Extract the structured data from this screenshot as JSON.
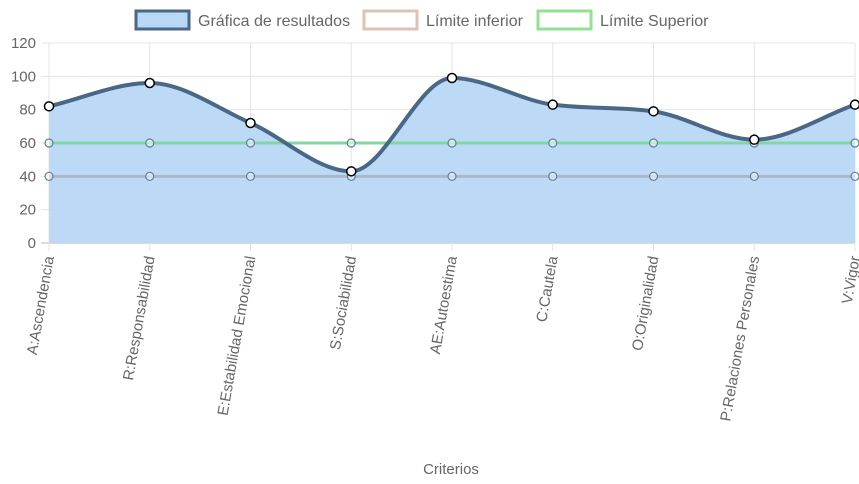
{
  "chart_data": {
    "type": "line",
    "categories": [
      "A:Ascendencia",
      "R:Responsabilidad",
      "E:Estabilidad Emocional",
      "S:Sociabilidad",
      "AE:Autoestima",
      "C:Cautela",
      "O:Originalidad",
      "P:Relaciones Personales",
      "V:Vigor"
    ],
    "series": [
      {
        "name": "Gráfica de resultados",
        "values": [
          82,
          96,
          72,
          43,
          99,
          83,
          79,
          62,
          83
        ],
        "border_color": "#4a6787",
        "fill_color": "#b8d8f6",
        "filled": true
      },
      {
        "name": "Límite inferior",
        "values": [
          40,
          40,
          40,
          40,
          40,
          40,
          40,
          40,
          40
        ],
        "border_color": "#a9b8c8",
        "legend_color": "#dcc3b6",
        "filled": false
      },
      {
        "name": "Límite Superior",
        "values": [
          60,
          60,
          60,
          60,
          60,
          60,
          60,
          60,
          60
        ],
        "border_color": "#82d6a4",
        "legend_color": "#96e096",
        "filled": false
      }
    ],
    "yticks": [
      "0",
      "20",
      "40",
      "60",
      "80",
      "100",
      "120"
    ],
    "ylim": [
      0,
      120
    ],
    "xlabel": "Criterios",
    "ylabel": "",
    "grid": true,
    "legend_position": "top"
  }
}
